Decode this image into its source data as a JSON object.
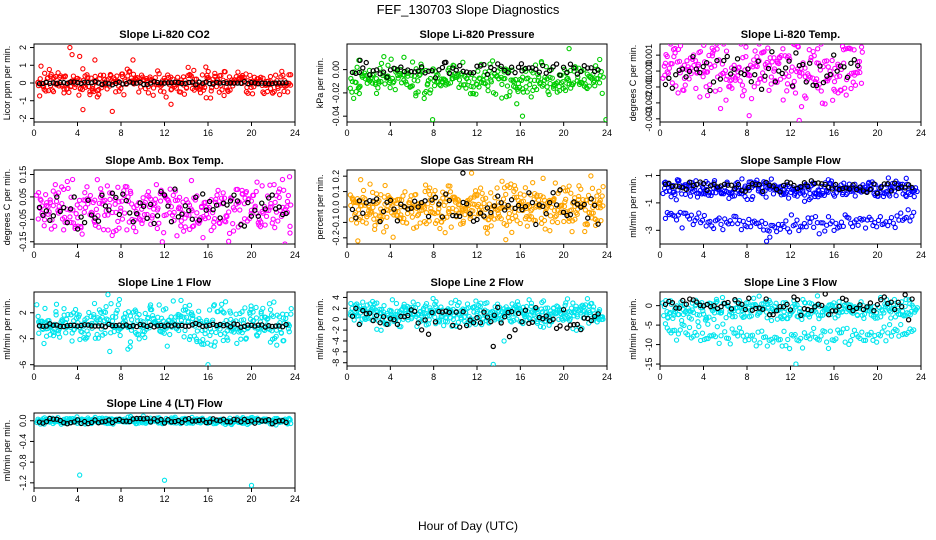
{
  "main_title": "FEF_130703  Slope Diagnostics",
  "x_axis_label": "Hour of Day (UTC)",
  "chart_data": [
    {
      "id": "p1",
      "type": "scatter",
      "title": "Slope Li-820 CO2",
      "ylabel": "Licor ppm per min.",
      "color": "#ff0000",
      "xlim": [
        0,
        24
      ],
      "xticks": [
        0,
        4,
        8,
        12,
        16,
        20,
        24
      ],
      "ylim": [
        -2.2,
        2.2
      ],
      "yticks": [
        -2,
        -1,
        0,
        1,
        2
      ],
      "colored_center": 0,
      "colored_spread": 0.35,
      "colored_outliers": [
        [
          3.3,
          2.0
        ],
        [
          3.5,
          1.6
        ],
        [
          4.2,
          1.5
        ],
        [
          4.5,
          -1.5
        ],
        [
          5.6,
          1.3
        ],
        [
          7.2,
          -1.6
        ],
        [
          9.1,
          1.3
        ],
        [
          12.6,
          -1.2
        ],
        [
          15.8,
          0.9
        ]
      ],
      "black_center": 0,
      "black_spread": 0.04,
      "black_extra": [],
      "npts": 340,
      "x_end": 24
    },
    {
      "id": "p2",
      "type": "scatter",
      "title": "Slope Li-820 Pressure",
      "ylabel": "kPa per min.",
      "color": "#00cc00",
      "xlim": [
        0,
        24
      ],
      "xticks": [
        0,
        4,
        8,
        12,
        16,
        20,
        24
      ],
      "ylim": [
        -0.045,
        0.022
      ],
      "yticks": [
        -0.04,
        -0.02,
        0.0
      ],
      "ytick_labels": [
        "-0.04",
        "-0.02",
        "0.00"
      ],
      "colored_center": -0.008,
      "colored_spread": 0.007,
      "colored_outliers": [
        [
          7.9,
          -0.043
        ],
        [
          16.2,
          -0.04
        ],
        [
          20.5,
          0.018
        ],
        [
          23.9,
          -0.043
        ],
        [
          1.1,
          0.008
        ]
      ],
      "black_center": 0.0,
      "black_spread": 0.003,
      "black_extra": [
        [
          1.2,
          0.008
        ],
        [
          9.0,
          0.006
        ],
        [
          16.1,
          0.005
        ]
      ],
      "npts": 320,
      "x_end": 24
    },
    {
      "id": "p3",
      "type": "scatter",
      "title": "Slope Li-820 Temp.",
      "ylabel": "degrees C per min.",
      "color": "#ff00ff",
      "xlim": [
        0,
        24
      ],
      "xticks": [
        0,
        4,
        8,
        12,
        16,
        20,
        24
      ],
      "ylim": [
        -0.0032,
        0.0017
      ],
      "yticks": [
        -0.003,
        -0.002,
        -0.001,
        0.0,
        0.001
      ],
      "ytick_labels": [
        "-0.003",
        "-0.002",
        "-0.001",
        "0.000",
        "0.001"
      ],
      "colored_center": 0.0,
      "colored_spread": 0.0009,
      "colored_outliers": [
        [
          8.2,
          -0.0028
        ],
        [
          12.8,
          -0.0031
        ],
        [
          14.5,
          0.0014
        ]
      ],
      "black_center": 0.0,
      "black_spread": 0.0006,
      "black_extra": [],
      "npts": 260,
      "x_end": 19
    },
    {
      "id": "p4",
      "type": "scatter",
      "title": "Slope Amb. Box Temp.",
      "ylabel": "degrees C per min.",
      "color": "#ff00ff",
      "xlim": [
        0,
        24
      ],
      "xticks": [
        0,
        4,
        8,
        12,
        16,
        20,
        24
      ],
      "ylim": [
        -0.16,
        0.17
      ],
      "yticks": [
        -0.15,
        -0.05,
        0.05,
        0.15
      ],
      "ytick_labels": [
        "-0.15",
        "-0.05",
        "0.05",
        "0.15"
      ],
      "colored_center": 0.0,
      "colored_spread": 0.06,
      "colored_outliers": [
        [
          11.8,
          -0.15
        ],
        [
          23.5,
          0.14
        ]
      ],
      "black_center": 0.0,
      "black_spread": 0.04,
      "black_extra": [],
      "npts": 340,
      "x_end": 24
    },
    {
      "id": "p5",
      "type": "scatter",
      "title": "Slope Gas Stream RH",
      "ylabel": "percent per min.",
      "color": "#ffa500",
      "xlim": [
        0,
        24
      ],
      "xticks": [
        0,
        4,
        8,
        12,
        16,
        20,
        24
      ],
      "ylim": [
        -0.24,
        0.24
      ],
      "yticks": [
        -0.2,
        -0.1,
        0.0,
        0.1,
        0.2
      ],
      "ytick_labels": [
        "-0.2",
        "-0.1",
        "0.0",
        "0.1",
        "0.2"
      ],
      "colored_center": 0.0,
      "colored_spread": 0.07,
      "colored_outliers": [
        [
          1.0,
          -0.22
        ],
        [
          11.5,
          0.22
        ]
      ],
      "black_center": 0.0,
      "black_spread": 0.05,
      "black_extra": [
        [
          10.7,
          0.22
        ]
      ],
      "npts": 440,
      "x_end": 24
    },
    {
      "id": "p6",
      "type": "scatter",
      "title": "Slope Sample Flow",
      "ylabel": "ml/min per min.",
      "color": "#0000ff",
      "xlim": [
        0,
        24
      ],
      "xticks": [
        0,
        4,
        8,
        12,
        16,
        20,
        24
      ],
      "ylim": [
        -4.0,
        1.4
      ],
      "yticks": [
        -3,
        -1,
        1
      ],
      "colored_center": 0.0,
      "colored_spread": 0.35,
      "band2": {
        "start": -2.0,
        "end": -2.6,
        "spread": 0.3
      },
      "colored_outliers": [
        [
          9.8,
          -3.8
        ],
        [
          10.1,
          -3.5
        ]
      ],
      "black_center": 0.2,
      "black_spread": 0.2,
      "black_extra": [],
      "npts": 300,
      "x_end": 24
    },
    {
      "id": "p7",
      "type": "scatter",
      "title": "Slope Line 1 Flow",
      "ylabel": "ml/min per min.",
      "color": "#00e5ee",
      "xlim": [
        0,
        24
      ],
      "xticks": [
        0,
        4,
        8,
        12,
        16,
        20,
        24
      ],
      "ylim": [
        -6.2,
        5.2
      ],
      "yticks": [
        -6,
        -2,
        2
      ],
      "colored_center": 0.5,
      "colored_spread": 1.6,
      "colored_outliers": [
        [
          16.0,
          -6.0
        ],
        [
          6.8,
          4.8
        ]
      ],
      "black_center": 0.0,
      "black_spread": 0.15,
      "black_extra": [],
      "npts": 400,
      "x_end": 24
    },
    {
      "id": "p8",
      "type": "scatter",
      "title": "Slope Line 2 Flow",
      "ylabel": "ml/min per min.",
      "color": "#00e5ee",
      "xlim": [
        0,
        24
      ],
      "xticks": [
        0,
        4,
        8,
        12,
        16,
        20,
        24
      ],
      "ylim": [
        -8.6,
        5.0
      ],
      "yticks": [
        -8,
        -6,
        -4,
        -2,
        0,
        2,
        4
      ],
      "colored_center": 1.0,
      "colored_spread": 1.2,
      "colored_outliers": [
        [
          13.5,
          -8.3
        ],
        [
          14.5,
          -4.0
        ]
      ],
      "black_center": 0.0,
      "black_spread": 1.3,
      "black_extra": [
        [
          13.5,
          -5.0
        ],
        [
          15.0,
          -3.2
        ]
      ],
      "npts": 420,
      "x_end": 24
    },
    {
      "id": "p9",
      "type": "scatter",
      "title": "Slope Line 3 Flow",
      "ylabel": "ml/min per min.",
      "color": "#00e5ee",
      "xlim": [
        0,
        24
      ],
      "xticks": [
        0,
        4,
        8,
        12,
        16,
        20,
        24
      ],
      "ylim": [
        -15.5,
        3.5
      ],
      "yticks": [
        -15,
        -10,
        -5,
        0
      ],
      "colored_center": -1.0,
      "colored_spread": 1.4,
      "band2": {
        "start": -6.0,
        "end": -8.5,
        "spread": 1.3
      },
      "colored_outliers": [
        [
          12.5,
          -15.0
        ]
      ],
      "black_center": 0.0,
      "black_spread": 1.2,
      "black_extra": [],
      "npts": 300,
      "x_end": 24
    },
    {
      "id": "p10",
      "type": "scatter",
      "title": "Slope Line 4 (LT) Flow",
      "ylabel": "ml/min per min.",
      "color": "#00e5ee",
      "xlim": [
        0,
        24
      ],
      "xticks": [
        0,
        4,
        8,
        12,
        16,
        20,
        24
      ],
      "ylim": [
        -1.3,
        0.15
      ],
      "yticks": [
        -1.2,
        -0.8,
        -0.4,
        0.0
      ],
      "ytick_labels": [
        "-1.2",
        "-0.8",
        "-0.4",
        "0.0"
      ],
      "colored_center": 0.0,
      "colored_spread": 0.03,
      "colored_outliers": [
        [
          4.2,
          -1.05
        ],
        [
          12.0,
          -1.15
        ],
        [
          20.0,
          -1.25
        ]
      ],
      "black_center": 0.0,
      "black_spread": 0.03,
      "black_extra": [],
      "npts": 400,
      "x_end": 24
    }
  ]
}
